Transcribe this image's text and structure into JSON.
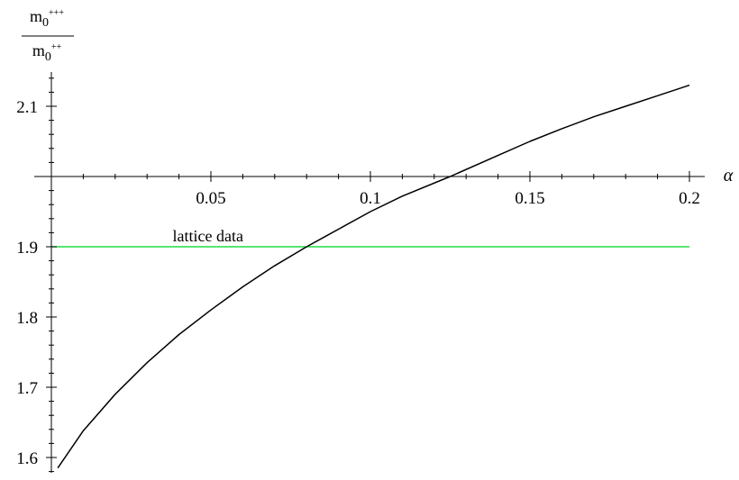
{
  "chart_data": {
    "type": "line",
    "xlabel": "α",
    "ylabel": {
      "numerator": {
        "base": "m",
        "sub": "0",
        "sup": "+++"
      },
      "denominator": {
        "base": "m",
        "sub": "0",
        "sup": "++"
      }
    },
    "xlim": [
      0,
      0.2
    ],
    "ylim": [
      1.58,
      2.15
    ],
    "x_axis_crossing_y": 2.0,
    "x_ticks": [
      {
        "value": 0.05,
        "label": "0.05"
      },
      {
        "value": 0.1,
        "label": "0.1"
      },
      {
        "value": 0.15,
        "label": "0.15"
      },
      {
        "value": 0.2,
        "label": "0.2"
      }
    ],
    "y_ticks": [
      {
        "value": 1.6,
        "label": "1.6"
      },
      {
        "value": 1.7,
        "label": "1.7"
      },
      {
        "value": 1.8,
        "label": "1.8"
      },
      {
        "value": 1.9,
        "label": "1.9"
      },
      {
        "value": 2.1,
        "label": "2.1"
      }
    ],
    "series": [
      {
        "color": "#000000",
        "x": [
          0.002,
          0.01,
          0.02,
          0.03,
          0.04,
          0.05,
          0.06,
          0.07,
          0.08,
          0.086,
          0.09,
          0.1,
          0.11,
          0.125,
          0.14,
          0.15,
          0.16,
          0.17,
          0.18,
          0.19,
          0.2
        ],
        "y": [
          1.585,
          1.638,
          1.69,
          1.735,
          1.775,
          1.81,
          1.843,
          1.873,
          1.9,
          1.915,
          1.925,
          1.95,
          1.972,
          2.0,
          2.03,
          2.05,
          2.068,
          2.085,
          2.1,
          2.115,
          2.13
        ]
      }
    ],
    "reference_lines": [
      {
        "y": 1.9,
        "x_range": [
          0,
          0.2
        ],
        "color": "#22dd44",
        "label": "lattice data"
      }
    ],
    "grid": false
  }
}
